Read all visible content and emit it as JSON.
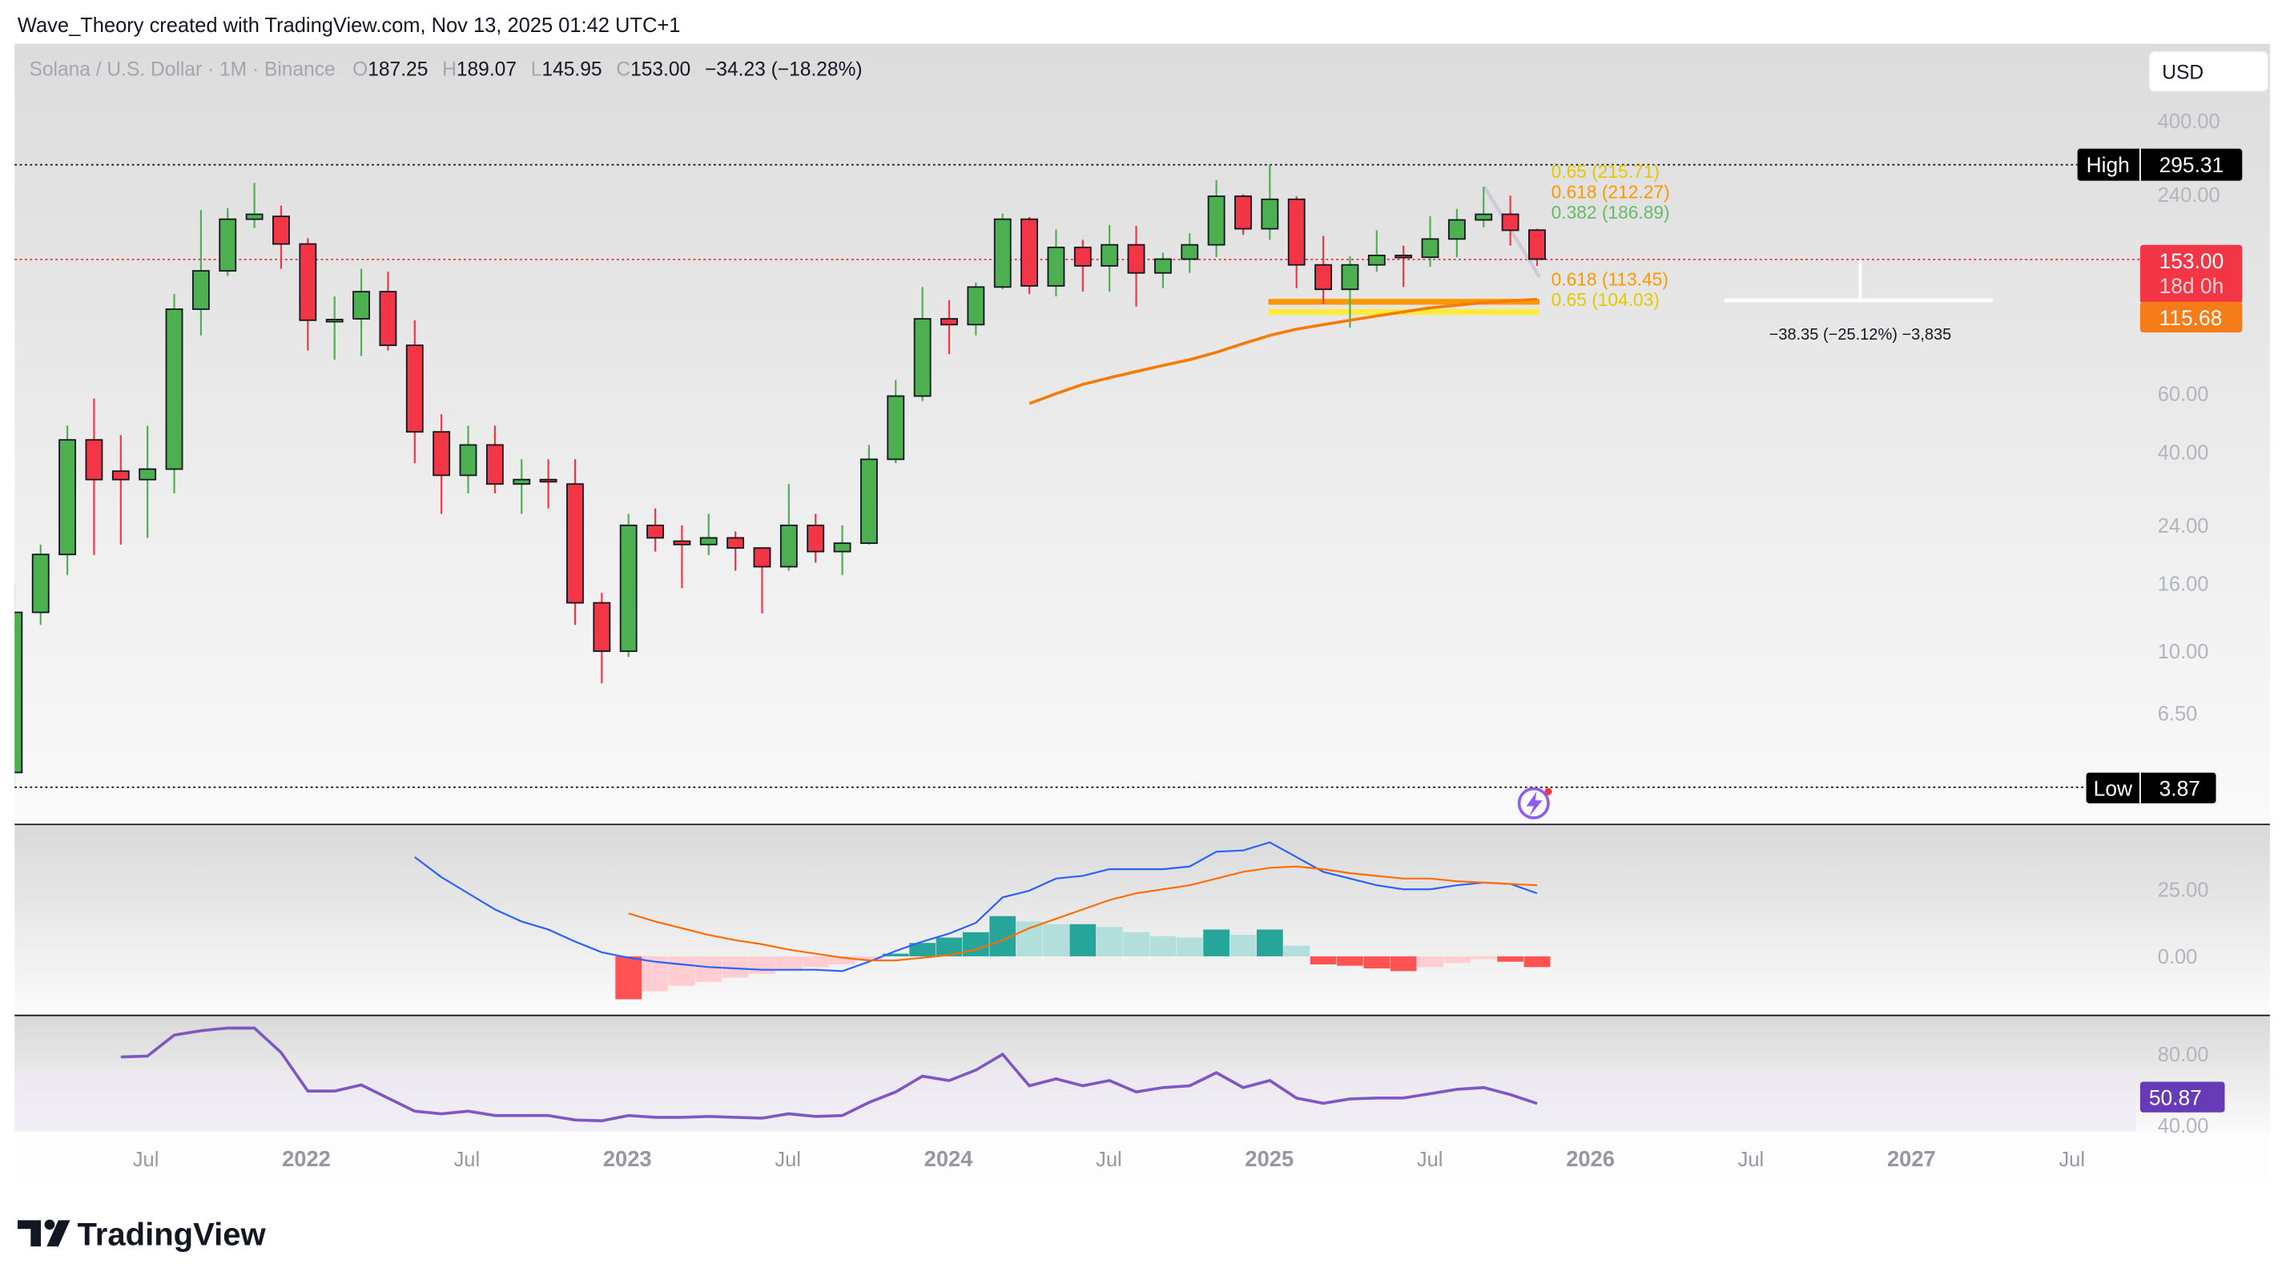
{
  "attribution": "Wave_Theory created with TradingView.com, Nov 13, 2025 01:42 UTC+1",
  "legend": {
    "symbol": "Solana / U.S. Dollar · 1M · Binance",
    "o_label": "O",
    "open": "187.25",
    "h_label": "H",
    "high": "189.07",
    "l_label": "L",
    "low": "145.95",
    "c_label": "C",
    "close": "153.00",
    "change": "−34.23 (−18.28%)"
  },
  "currency_button": "USD",
  "price_axis": {
    "scale": "log",
    "ticks": [
      "400.00",
      "240.00",
      "60.00",
      "40.00",
      "24.00",
      "16.00",
      "10.00",
      "6.50"
    ],
    "tick_values": [
      400,
      240,
      60,
      40,
      24,
      16,
      10,
      6.5
    ]
  },
  "labels": {
    "high_label": "High",
    "high_value": "295.31",
    "low_label": "Low",
    "low_value": "3.87",
    "last_price": "153.00",
    "countdown": "18d 0h",
    "ema_value": "115.68",
    "rsi_value": "50.87"
  },
  "fib": {
    "f0618_top": "0.618 (212.27)",
    "f065_top": "0.65 (215.71)",
    "f0382": "0.382 (186.89)",
    "f0618": "0.618 (113.45)",
    "f065": "0.65 (104.03)"
  },
  "measure": {
    "text": "−38.35 (−25.12%) −3,835"
  },
  "macd_axis": [
    "25.00",
    "0.00"
  ],
  "rsi_axis": [
    "80.00",
    "40.00"
  ],
  "time_axis": [
    {
      "label": "Jul",
      "year": false
    },
    {
      "label": "2022",
      "year": true
    },
    {
      "label": "Jul",
      "year": false
    },
    {
      "label": "2023",
      "year": true
    },
    {
      "label": "Jul",
      "year": false
    },
    {
      "label": "2024",
      "year": true
    },
    {
      "label": "Jul",
      "year": false
    },
    {
      "label": "2025",
      "year": true
    },
    {
      "label": "Jul",
      "year": false
    },
    {
      "label": "2026",
      "year": true
    },
    {
      "label": "Jul",
      "year": false
    },
    {
      "label": "2027",
      "year": true
    },
    {
      "label": "Jul",
      "year": false
    }
  ],
  "logo": "TradingView",
  "colors": {
    "up": "#4caf50",
    "down": "#f23645",
    "ema": "#f57c00",
    "macd": "#2962ff",
    "signal": "#ff6d00",
    "rsi": "#7e57c2",
    "fib618": "#ff9800",
    "fib65": "#ffeb3b",
    "fib382": "#4caf50"
  },
  "chart_data": {
    "type": "candlestick",
    "interval": "1M",
    "start_month": "2021-02",
    "ohlc": [
      [
        4.3,
        16,
        3.9,
        13.1
      ],
      [
        13.1,
        21,
        12,
        19.6
      ],
      [
        19.6,
        48,
        17,
        43.5
      ],
      [
        43.5,
        58,
        19.5,
        33
      ],
      [
        35,
        45,
        21,
        33
      ],
      [
        33,
        48,
        22,
        35.5
      ],
      [
        35.5,
        120,
        30,
        108
      ],
      [
        108,
        215,
        90,
        141
      ],
      [
        141,
        218,
        136,
        202
      ],
      [
        202,
        260,
        190,
        209
      ],
      [
        206,
        222,
        143,
        170
      ],
      [
        170,
        177,
        81,
        100
      ],
      [
        100,
        118,
        76,
        100.5
      ],
      [
        101,
        143,
        78,
        122
      ],
      [
        122,
        140,
        81,
        84
      ],
      [
        84,
        100,
        37,
        46
      ],
      [
        46,
        52,
        26,
        34
      ],
      [
        34,
        48,
        30,
        42
      ],
      [
        42,
        48,
        30,
        32
      ],
      [
        32,
        38,
        26,
        33
      ],
      [
        33,
        38,
        27,
        32.8
      ],
      [
        32,
        38,
        12,
        14
      ],
      [
        14,
        15,
        8,
        10
      ],
      [
        10,
        26,
        9.6,
        24
      ],
      [
        24,
        27,
        20,
        22
      ],
      [
        21.5,
        24,
        15.5,
        21
      ],
      [
        21,
        26,
        19.5,
        22
      ],
      [
        22,
        23,
        17.5,
        20.5
      ],
      [
        20.5,
        20.5,
        13,
        18
      ],
      [
        18,
        32,
        17.5,
        24
      ],
      [
        24,
        26,
        18.5,
        20
      ],
      [
        20,
        24,
        17,
        21.2
      ],
      [
        21.2,
        42,
        21,
        38
      ],
      [
        38,
        66,
        37,
        59
      ],
      [
        59,
        126,
        57,
        101
      ],
      [
        101,
        115,
        79,
        97
      ],
      [
        97,
        130,
        90,
        126
      ],
      [
        126,
        210,
        124,
        202
      ],
      [
        202,
        205,
        120,
        127
      ],
      [
        127,
        188,
        118,
        166
      ],
      [
        166,
        175,
        122,
        146
      ],
      [
        146,
        194,
        122,
        169
      ],
      [
        169,
        193,
        110,
        139
      ],
      [
        139,
        160,
        125,
        153
      ],
      [
        153,
        183,
        139,
        169
      ],
      [
        169,
        265,
        155,
        237
      ],
      [
        237,
        240,
        181,
        189
      ],
      [
        189,
        295.31,
        175,
        232
      ],
      [
        232,
        237,
        125,
        147
      ],
      [
        147,
        180,
        112,
        124
      ],
      [
        124,
        156,
        95,
        147
      ],
      [
        147,
        187,
        140,
        157
      ],
      [
        157,
        168,
        126,
        155
      ],
      [
        155,
        206,
        145,
        176
      ],
      [
        176,
        217,
        155,
        201
      ],
      [
        201,
        253,
        191,
        209
      ],
      [
        209,
        238,
        168,
        187
      ],
      [
        187.25,
        189.07,
        145.95,
        153.0
      ]
    ],
    "ema": {
      "start_month": "2024-04",
      "values": [
        56,
        60,
        64,
        67,
        70,
        73,
        76,
        80,
        85,
        90,
        94,
        97,
        100,
        103,
        106,
        109,
        111,
        113,
        114.5,
        115.68
      ]
    },
    "macd": {
      "line_start_month": "2022-05",
      "line": [
        37,
        29.5,
        23.5,
        17.5,
        13,
        10,
        5.5,
        1.5,
        -0.5,
        -2,
        -3,
        -4,
        -4.5,
        -5,
        -5,
        -5,
        -5.5,
        -2,
        2,
        5.5,
        8.5,
        12.5,
        22,
        24.5,
        29,
        30,
        32.5,
        32.5,
        32.5,
        33.5,
        39,
        39.5,
        42.5,
        37,
        31.5,
        29,
        26.5,
        25,
        25,
        26.5,
        27.5,
        27,
        23.5
      ],
      "signal_start_month": "2023-01",
      "signal": [
        16,
        13,
        10.5,
        8,
        6,
        4.5,
        2.5,
        1,
        -0.5,
        -1.5,
        -1.5,
        -0.5,
        0.5,
        2.5,
        6,
        10.5,
        14,
        17.5,
        21,
        23.5,
        25,
        26.5,
        29,
        31.5,
        33,
        33.5,
        32.5,
        31,
        30,
        29,
        29,
        28,
        27.5,
        27,
        26.5
      ],
      "histogram": [
        -16,
        -13,
        -11,
        -9.5,
        -8,
        -6.5,
        -5.5,
        -4,
        -3,
        -1.5,
        1,
        5,
        7,
        9,
        15,
        13,
        12,
        12,
        11,
        9,
        7.5,
        7,
        10,
        8,
        10,
        4,
        -3,
        -3.5,
        -4.5,
        -5.5,
        -4,
        -2.5,
        -1,
        -2,
        -4
      ]
    },
    "rsi": {
      "start_month": "2021-06",
      "values": [
        77.5,
        78,
        90,
        92.5,
        94,
        94,
        80,
        58,
        58,
        61.5,
        54,
        46.5,
        45,
        46.5,
        44,
        44,
        44,
        41.5,
        41,
        44,
        43,
        43,
        43.5,
        43,
        42.5,
        45,
        43.5,
        44,
        51.5,
        57.5,
        66.5,
        64,
        70,
        79,
        61,
        65,
        61,
        64,
        57.5,
        60,
        61,
        68.5,
        60,
        64,
        54,
        51,
        53.5,
        54,
        54,
        56.5,
        59,
        60,
        56,
        50.87
      ]
    }
  }
}
